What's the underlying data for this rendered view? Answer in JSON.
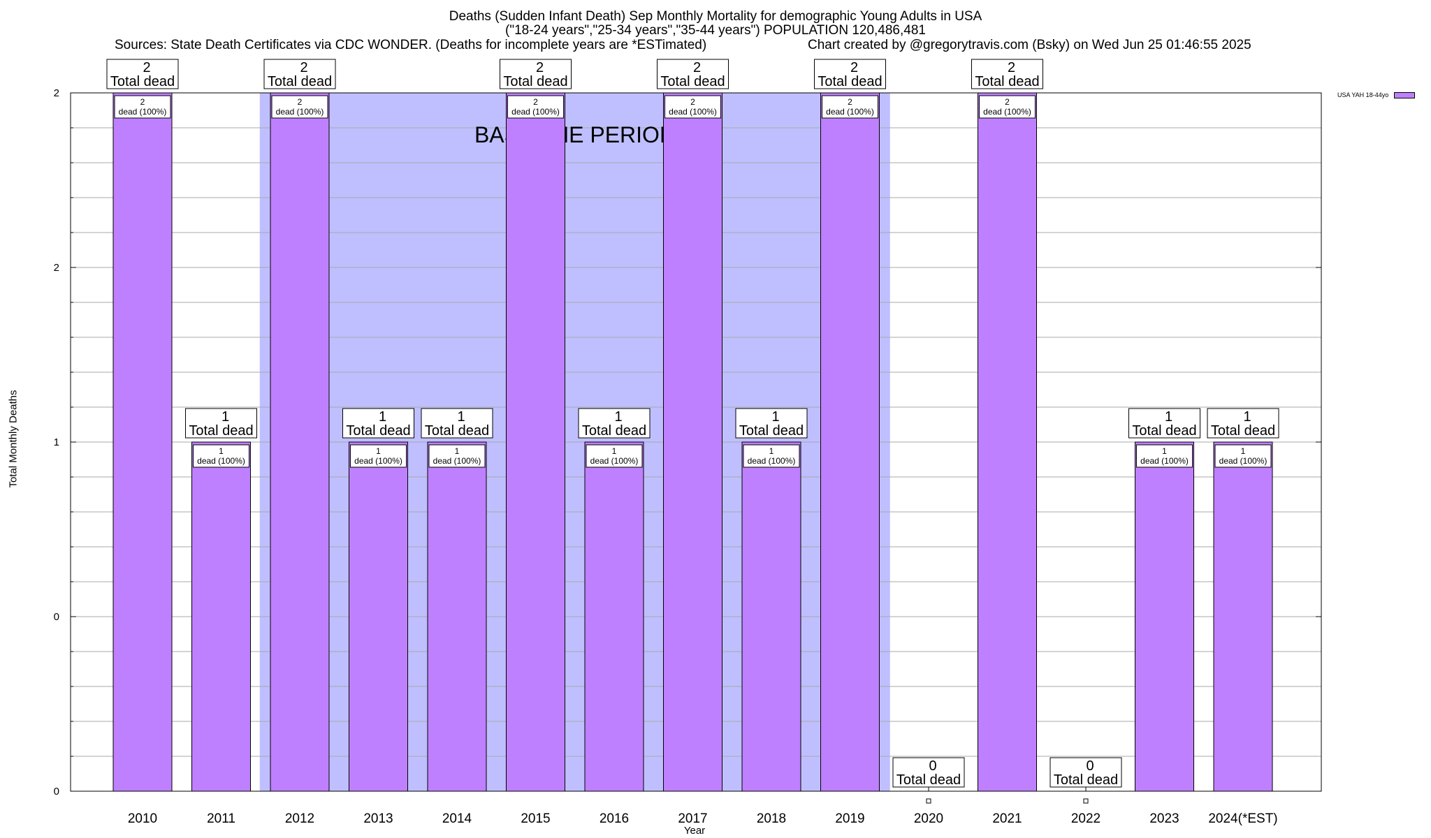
{
  "chart_data": {
    "type": "bar",
    "title_lines": [
      "Deaths (Sudden Infant Death) Sep Monthly Mortality for demographic Young Adults in USA",
      "(\"18-24 years\",\"25-34 years\",\"35-44 years\") POPULATION 120,486,481"
    ],
    "sources": "Sources: State Death Certificates via CDC WONDER. (Deaths for incomplete years are *ESTimated)",
    "credit": "Chart created by @gregorytravis.com (Bsky) on Wed Jun 25 01:46:55 2025",
    "xlabel": "Year",
    "ylabel": "Total Monthly Deaths",
    "categories": [
      "2010",
      "2011",
      "2012",
      "2013",
      "2014",
      "2015",
      "2016",
      "2017",
      "2018",
      "2019",
      "2020",
      "2021",
      "2022",
      "2023",
      "2024(*EST)"
    ],
    "series": [
      {
        "name": "USA YAH 18-44yo",
        "values": [
          2,
          1,
          2,
          1,
          1,
          2,
          1,
          2,
          1,
          2,
          0,
          2,
          0,
          1,
          1
        ],
        "color": "#bf80ff"
      }
    ],
    "bar_top_labels": [
      "2\nTotal dead",
      "1\nTotal dead",
      "2\nTotal dead",
      "1\nTotal dead",
      "1\nTotal dead",
      "2\nTotal dead",
      "1\nTotal dead",
      "2\nTotal dead",
      "1\nTotal dead",
      "2\nTotal dead",
      "0\nTotal dead",
      "2\nTotal dead",
      "0\nTotal dead",
      "1\nTotal dead",
      "1\nTotal dead"
    ],
    "bar_inner_labels": [
      "2\ndead (100%)",
      "1\ndead (100%)",
      "2\ndead (100%)",
      "1\ndead (100%)",
      "1\ndead (100%)",
      "2\ndead (100%)",
      "1\ndead (100%)",
      "2\ndead (100%)",
      "1\ndead (100%)",
      "2\ndead (100%)",
      "",
      "2\ndead (100%)",
      "",
      "1\ndead (100%)",
      "1\ndead (100%)"
    ],
    "ylim": [
      0,
      2
    ],
    "ytick_labels": [
      "0",
      "0",
      "1",
      "2",
      "2"
    ],
    "baseline": {
      "label": "BASELINE PERIOD",
      "from": "2012",
      "to": "2019",
      "color": "#bfbfff"
    },
    "grid": true,
    "legend_position": "top-right"
  }
}
